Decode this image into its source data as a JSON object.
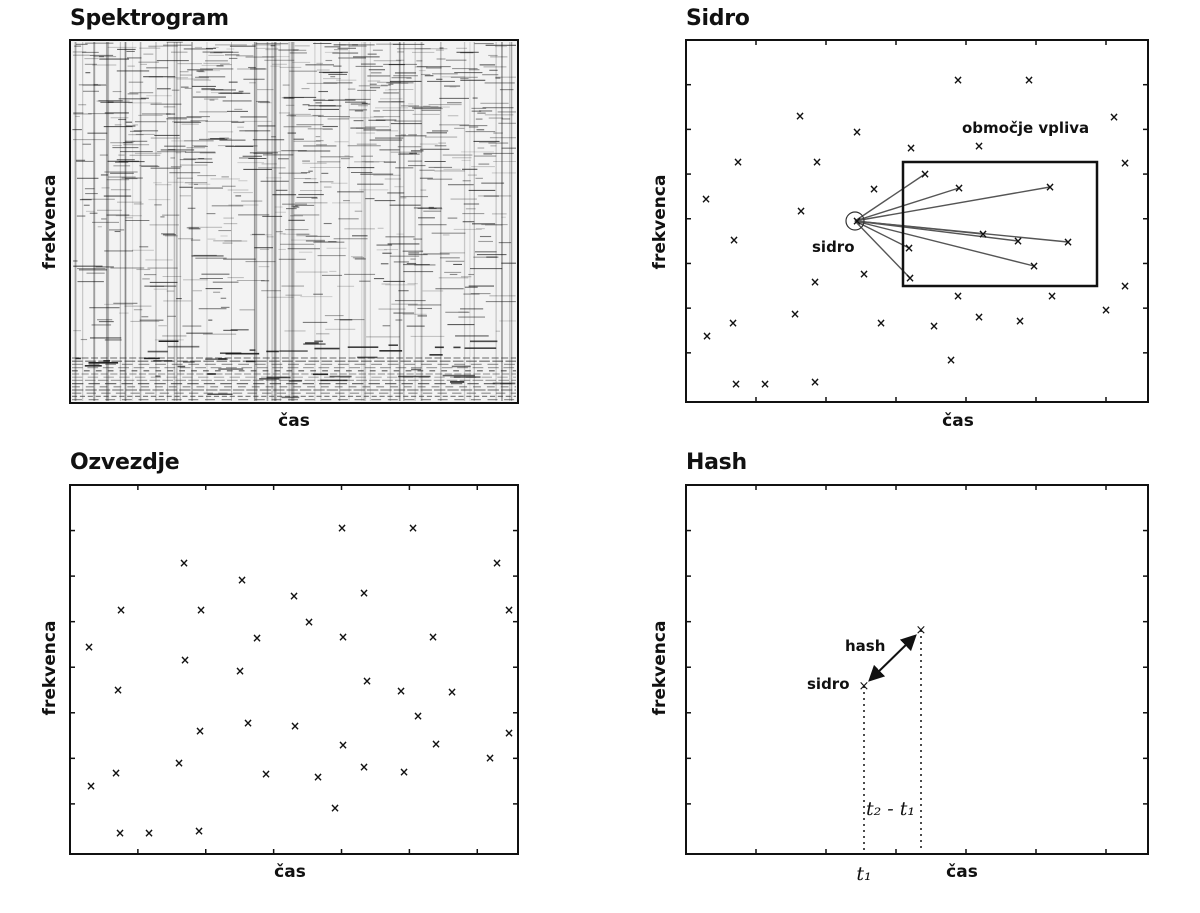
{
  "panels": {
    "spectrogram": {
      "title": "Spektrogram",
      "xlabel": "čas",
      "ylabel": "frekvenca"
    },
    "anchor": {
      "title": "Sidro",
      "xlabel": "čas",
      "ylabel": "frekvenca",
      "anchor_label": "sidro",
      "zone_label": "območje vpliva"
    },
    "constellation": {
      "title": "Ozvezdje",
      "xlabel": "čas",
      "ylabel": "frekvenca"
    },
    "hash": {
      "title": "Hash",
      "xlabel": "čas",
      "ylabel": "frekvenca",
      "anchor_label": "sidro",
      "hash_label": "hash",
      "t1_label": "t₁",
      "dt_label": "t₂ - t₁"
    }
  }
}
